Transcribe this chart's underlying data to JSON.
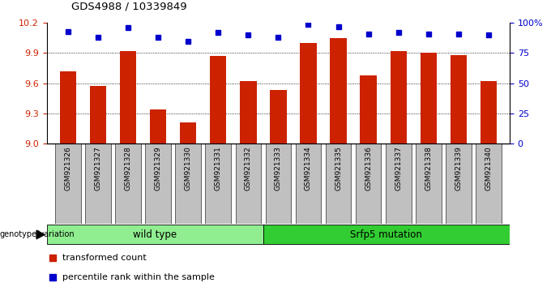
{
  "title": "GDS4988 / 10339849",
  "categories": [
    "GSM921326",
    "GSM921327",
    "GSM921328",
    "GSM921329",
    "GSM921330",
    "GSM921331",
    "GSM921332",
    "GSM921333",
    "GSM921334",
    "GSM921335",
    "GSM921336",
    "GSM921337",
    "GSM921338",
    "GSM921339",
    "GSM921340"
  ],
  "bar_values": [
    9.72,
    9.57,
    9.92,
    9.34,
    9.21,
    9.875,
    9.62,
    9.53,
    10.0,
    10.05,
    9.68,
    9.92,
    9.9,
    9.88,
    9.62
  ],
  "percentile_values": [
    93,
    88,
    96,
    88,
    85,
    92,
    90,
    88,
    99,
    97,
    91,
    92,
    91,
    91,
    90
  ],
  "ylim_left": [
    9.0,
    10.2
  ],
  "ylim_right": [
    0,
    100
  ],
  "yticks_left": [
    9.0,
    9.3,
    9.6,
    9.9,
    10.2
  ],
  "yticks_right": [
    0,
    25,
    50,
    75,
    100
  ],
  "bar_color": "#cc2200",
  "dot_color": "#0000cc",
  "tick_color_left": "#cc2200",
  "tick_color_right": "#0000cc",
  "wild_type_count": 7,
  "mutation_count": 8,
  "wild_type_label": "wild type",
  "mutation_label": "Srfp5 mutation",
  "group_color_wt": "#90ee90",
  "group_color_mut": "#32cd32",
  "genotype_label": "genotype/variation",
  "legend_bar_label": "transformed count",
  "legend_dot_label": "percentile rank within the sample",
  "bar_width": 0.55,
  "xtick_bg_color": "#c0c0c0",
  "dotted_gridlines": [
    9.3,
    9.6,
    9.9
  ]
}
